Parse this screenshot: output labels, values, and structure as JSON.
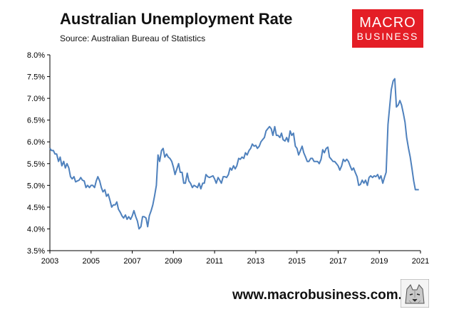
{
  "header": {
    "title": "Australian Unemployment Rate",
    "subtitle": "Source: Australian Bureau of Statistics"
  },
  "logo": {
    "line1": "MACRO",
    "line2": "BUSINESS",
    "color": "#e41e26"
  },
  "footer": {
    "website": "www.macrobusiness.com.au",
    "mascot_icon": "wolf-mascot-icon"
  },
  "chart_data": {
    "type": "line",
    "title": "Australian Unemployment Rate",
    "xlabel": "",
    "ylabel": "",
    "xlim": [
      2003,
      2021
    ],
    "ylim": [
      3.5,
      8.0
    ],
    "grid": false,
    "line_color": "#4f81bd",
    "x_ticks": [
      "2003",
      "2005",
      "2007",
      "2009",
      "2011",
      "2013",
      "2015",
      "2017",
      "2019",
      "2021"
    ],
    "y_ticks": [
      "8.0%",
      "7.5%",
      "7.0%",
      "6.5%",
      "6.0%",
      "5.5%",
      "5.0%",
      "4.5%",
      "4.0%",
      "3.5%"
    ],
    "series": [
      {
        "x": [
          2003.0,
          2003.08,
          2003.17,
          2003.25,
          2003.33,
          2003.42,
          2003.5,
          2003.58,
          2003.67,
          2003.75,
          2003.83,
          2003.92,
          2004.0,
          2004.08,
          2004.17,
          2004.25,
          2004.33,
          2004.42,
          2004.5,
          2004.58,
          2004.67,
          2004.75,
          2004.83,
          2004.92,
          2005.0,
          2005.08,
          2005.17,
          2005.25,
          2005.33,
          2005.42,
          2005.5,
          2005.58,
          2005.67,
          2005.75,
          2005.83,
          2005.92,
          2006.0,
          2006.08,
          2006.17,
          2006.25,
          2006.33,
          2006.42,
          2006.5,
          2006.58,
          2006.67,
          2006.75,
          2006.83,
          2006.92,
          2007.0,
          2007.08,
          2007.17,
          2007.25,
          2007.33,
          2007.42,
          2007.5,
          2007.58,
          2007.67,
          2007.75,
          2007.83,
          2007.92,
          2008.0,
          2008.08,
          2008.17,
          2008.25,
          2008.33,
          2008.42,
          2008.5,
          2008.58,
          2008.67,
          2008.75,
          2008.83,
          2008.92,
          2009.0,
          2009.08,
          2009.17,
          2009.25,
          2009.33,
          2009.42,
          2009.5,
          2009.58,
          2009.67,
          2009.75,
          2009.83,
          2009.92,
          2010.0,
          2010.08,
          2010.17,
          2010.25,
          2010.33,
          2010.42,
          2010.5,
          2010.58,
          2010.67,
          2010.75,
          2010.83,
          2010.92,
          2011.0,
          2011.08,
          2011.17,
          2011.25,
          2011.33,
          2011.42,
          2011.5,
          2011.58,
          2011.67,
          2011.75,
          2011.83,
          2011.92,
          2012.0,
          2012.08,
          2012.17,
          2012.25,
          2012.33,
          2012.42,
          2012.5,
          2012.58,
          2012.67,
          2012.75,
          2012.83,
          2012.92,
          2013.0,
          2013.08,
          2013.17,
          2013.25,
          2013.33,
          2013.42,
          2013.5,
          2013.58,
          2013.67,
          2013.75,
          2013.83,
          2013.92,
          2014.0,
          2014.08,
          2014.17,
          2014.25,
          2014.33,
          2014.42,
          2014.5,
          2014.58,
          2014.67,
          2014.75,
          2014.83,
          2014.92,
          2015.0,
          2015.08,
          2015.17,
          2015.25,
          2015.33,
          2015.42,
          2015.5,
          2015.58,
          2015.67,
          2015.75,
          2015.83,
          2015.92,
          2016.0,
          2016.08,
          2016.17,
          2016.25,
          2016.33,
          2016.42,
          2016.5,
          2016.58,
          2016.67,
          2016.75,
          2016.83,
          2016.92,
          2017.0,
          2017.08,
          2017.17,
          2017.25,
          2017.33,
          2017.42,
          2017.5,
          2017.58,
          2017.67,
          2017.75,
          2017.83,
          2017.92,
          2018.0,
          2018.08,
          2018.17,
          2018.25,
          2018.33,
          2018.42,
          2018.5,
          2018.58,
          2018.67,
          2018.75,
          2018.83,
          2018.92,
          2019.0,
          2019.08,
          2019.17,
          2019.25,
          2019.33,
          2019.42,
          2019.5,
          2019.58,
          2019.67,
          2019.75,
          2019.83,
          2019.92,
          2020.0,
          2020.08,
          2020.17,
          2020.25,
          2020.33,
          2020.42,
          2020.5,
          2020.58,
          2020.67,
          2020.75,
          2020.83,
          2020.92
        ],
        "y": [
          5.85,
          5.8,
          5.8,
          5.72,
          5.72,
          5.55,
          5.65,
          5.45,
          5.55,
          5.4,
          5.5,
          5.4,
          5.2,
          5.15,
          5.2,
          5.08,
          5.1,
          5.12,
          5.18,
          5.12,
          5.1,
          4.95,
          5.0,
          4.95,
          5.0,
          5.0,
          4.95,
          5.1,
          5.2,
          5.1,
          4.95,
          4.85,
          4.9,
          4.75,
          4.8,
          4.65,
          4.5,
          4.55,
          4.55,
          4.62,
          4.45,
          4.38,
          4.3,
          4.25,
          4.32,
          4.22,
          4.28,
          4.22,
          4.3,
          4.42,
          4.28,
          4.18,
          4.0,
          4.05,
          4.28,
          4.28,
          4.25,
          4.05,
          4.3,
          4.42,
          4.55,
          4.75,
          5.0,
          5.7,
          5.55,
          5.8,
          5.85,
          5.65,
          5.72,
          5.65,
          5.62,
          5.55,
          5.42,
          5.25,
          5.38,
          5.5,
          5.3,
          5.3,
          5.05,
          5.05,
          5.28,
          5.1,
          5.05,
          4.95,
          5.0,
          4.98,
          4.95,
          5.05,
          4.92,
          5.05,
          5.05,
          5.25,
          5.2,
          5.18,
          5.2,
          5.22,
          5.15,
          5.05,
          5.18,
          5.12,
          5.05,
          5.2,
          5.2,
          5.18,
          5.25,
          5.4,
          5.35,
          5.45,
          5.38,
          5.45,
          5.62,
          5.6,
          5.65,
          5.62,
          5.75,
          5.7,
          5.8,
          5.85,
          5.95,
          5.9,
          5.92,
          5.85,
          5.9,
          6.0,
          6.05,
          6.1,
          6.25,
          6.3,
          6.35,
          6.3,
          6.15,
          6.35,
          6.15,
          6.15,
          6.1,
          6.2,
          6.05,
          6.02,
          6.1,
          6.0,
          6.25,
          6.15,
          6.2,
          5.9,
          5.85,
          5.7,
          5.8,
          5.9,
          5.75,
          5.65,
          5.55,
          5.55,
          5.62,
          5.62,
          5.55,
          5.55,
          5.55,
          5.5,
          5.6,
          5.82,
          5.75,
          5.85,
          5.88,
          5.65,
          5.6,
          5.55,
          5.55,
          5.5,
          5.45,
          5.35,
          5.45,
          5.6,
          5.55,
          5.6,
          5.55,
          5.45,
          5.35,
          5.4,
          5.3,
          5.2,
          5.0,
          5.02,
          5.12,
          5.05,
          5.12,
          5.0,
          5.18,
          5.22,
          5.18,
          5.22,
          5.2,
          5.25,
          5.15,
          5.22,
          5.05,
          5.18,
          5.3,
          6.4,
          6.8,
          7.2,
          7.4,
          7.45,
          6.8,
          6.85,
          6.95,
          6.85,
          6.65,
          6.45,
          6.1,
          5.85,
          5.65,
          5.4,
          5.1,
          4.9,
          4.9,
          4.9
        ]
      }
    ]
  }
}
